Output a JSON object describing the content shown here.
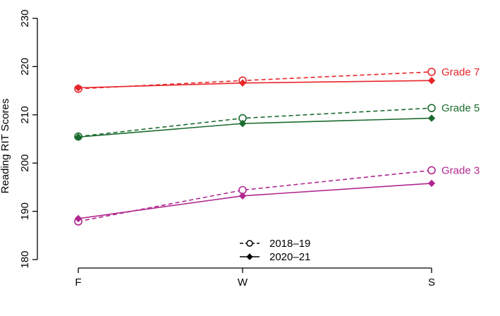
{
  "chart_data": {
    "type": "line",
    "title": "",
    "xlabel": "",
    "ylabel": "Reading RIT Scores",
    "categories": [
      "F",
      "W",
      "S"
    ],
    "ylim": [
      180,
      230
    ],
    "yticks": [
      180,
      190,
      200,
      210,
      220,
      230
    ],
    "grid": false,
    "legend": {
      "placement": "bottom-center",
      "entries": [
        {
          "label": "2018–19",
          "linestyle": "dashed",
          "marker": "open-circle"
        },
        {
          "label": "2020–21",
          "linestyle": "solid",
          "marker": "filled-diamond"
        }
      ]
    },
    "groups": [
      {
        "label": "Grade 7",
        "color": "#e8262b",
        "series": [
          {
            "year": "2018–19",
            "linestyle": "dashed",
            "marker": "open-circle",
            "values": [
              215.4,
              217.1,
              218.9
            ]
          },
          {
            "year": "2020–21",
            "linestyle": "solid",
            "marker": "filled-diamond",
            "values": [
              215.6,
              216.6,
              217.1
            ]
          }
        ]
      },
      {
        "label": "Grade 5",
        "color": "#1a6b2f",
        "series": [
          {
            "year": "2018–19",
            "linestyle": "dashed",
            "marker": "open-circle",
            "values": [
              205.5,
              209.3,
              211.4
            ]
          },
          {
            "year": "2020–21",
            "linestyle": "solid",
            "marker": "filled-diamond",
            "values": [
              205.4,
              208.2,
              209.3
            ]
          }
        ]
      },
      {
        "label": "Grade 3",
        "color": "#b0278f",
        "series": [
          {
            "year": "2018–19",
            "linestyle": "dashed",
            "marker": "open-circle",
            "values": [
              187.9,
              194.4,
              198.5
            ]
          },
          {
            "year": "2020–21",
            "linestyle": "solid",
            "marker": "filled-diamond",
            "values": [
              188.5,
              193.2,
              195.8
            ]
          }
        ]
      }
    ]
  }
}
